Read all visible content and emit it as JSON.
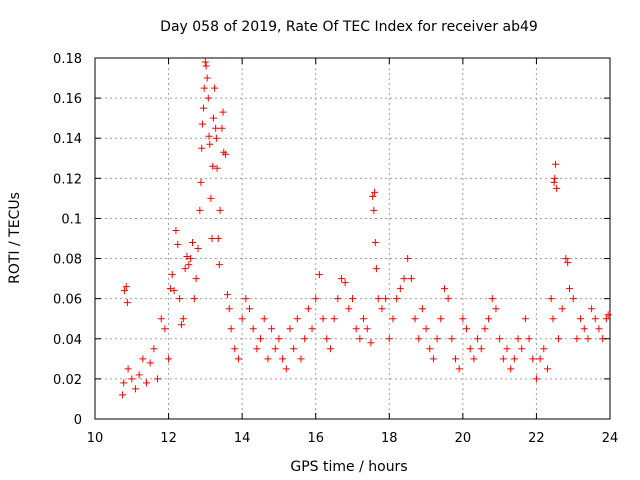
{
  "chart_data": {
    "type": "scatter",
    "title": "Day 058 of 2019, Rate Of TEC Index for receiver ab49",
    "xlabel": "GPS time / hours",
    "ylabel": "ROTI / TECUs",
    "xlim": [
      10,
      24
    ],
    "ylim": [
      0,
      0.18
    ],
    "x_ticks": [
      10,
      12,
      14,
      16,
      18,
      20,
      22,
      24
    ],
    "y_ticks": [
      0,
      0.02,
      0.04,
      0.06,
      0.08,
      0.1,
      0.12,
      0.14,
      0.16,
      0.18
    ],
    "x_tick_labels": [
      "10",
      "12",
      "14",
      "16",
      "18",
      "20",
      "22",
      "24"
    ],
    "y_tick_labels": [
      "0",
      "0.02",
      "0.04",
      "0.06",
      "0.08",
      "0.1",
      "0.12",
      "0.14",
      "0.16",
      "0.18"
    ],
    "grid": true,
    "marker": "+",
    "color": "#ff0000",
    "series": [
      {
        "name": "ROTI",
        "points": [
          [
            10.75,
            0.012
          ],
          [
            10.78,
            0.018
          ],
          [
            10.8,
            0.064
          ],
          [
            10.85,
            0.066
          ],
          [
            10.88,
            0.058
          ],
          [
            10.9,
            0.025
          ],
          [
            11.0,
            0.02
          ],
          [
            11.1,
            0.015
          ],
          [
            11.2,
            0.022
          ],
          [
            11.3,
            0.03
          ],
          [
            11.4,
            0.018
          ],
          [
            11.5,
            0.028
          ],
          [
            11.6,
            0.035
          ],
          [
            11.7,
            0.02
          ],
          [
            11.8,
            0.05
          ],
          [
            11.9,
            0.045
          ],
          [
            12.0,
            0.03
          ],
          [
            12.05,
            0.065
          ],
          [
            12.1,
            0.072
          ],
          [
            12.15,
            0.064
          ],
          [
            12.2,
            0.094
          ],
          [
            12.25,
            0.087
          ],
          [
            12.3,
            0.06
          ],
          [
            12.35,
            0.047
          ],
          [
            12.4,
            0.05
          ],
          [
            12.45,
            0.075
          ],
          [
            12.5,
            0.081
          ],
          [
            12.55,
            0.077
          ],
          [
            12.6,
            0.08
          ],
          [
            12.65,
            0.088
          ],
          [
            12.7,
            0.06
          ],
          [
            12.75,
            0.07
          ],
          [
            12.8,
            0.085
          ],
          [
            12.85,
            0.104
          ],
          [
            12.88,
            0.118
          ],
          [
            12.9,
            0.135
          ],
          [
            12.92,
            0.147
          ],
          [
            12.95,
            0.155
          ],
          [
            12.97,
            0.165
          ],
          [
            13.0,
            0.178
          ],
          [
            13.02,
            0.176
          ],
          [
            13.05,
            0.17
          ],
          [
            13.08,
            0.16
          ],
          [
            13.1,
            0.141
          ],
          [
            13.12,
            0.137
          ],
          [
            13.15,
            0.11
          ],
          [
            13.18,
            0.09
          ],
          [
            13.2,
            0.126
          ],
          [
            13.22,
            0.15
          ],
          [
            13.25,
            0.165
          ],
          [
            13.28,
            0.145
          ],
          [
            13.3,
            0.14
          ],
          [
            13.32,
            0.125
          ],
          [
            13.35,
            0.09
          ],
          [
            13.38,
            0.077
          ],
          [
            13.4,
            0.104
          ],
          [
            13.45,
            0.145
          ],
          [
            13.48,
            0.153
          ],
          [
            13.5,
            0.133
          ],
          [
            13.55,
            0.132
          ],
          [
            13.6,
            0.062
          ],
          [
            13.65,
            0.055
          ],
          [
            13.7,
            0.045
          ],
          [
            13.8,
            0.035
          ],
          [
            13.9,
            0.03
          ],
          [
            14.0,
            0.05
          ],
          [
            14.1,
            0.06
          ],
          [
            14.2,
            0.055
          ],
          [
            14.3,
            0.045
          ],
          [
            14.4,
            0.035
          ],
          [
            14.5,
            0.04
          ],
          [
            14.6,
            0.05
          ],
          [
            14.7,
            0.03
          ],
          [
            14.8,
            0.045
          ],
          [
            14.9,
            0.035
          ],
          [
            15.0,
            0.04
          ],
          [
            15.1,
            0.03
          ],
          [
            15.2,
            0.025
          ],
          [
            15.3,
            0.045
          ],
          [
            15.4,
            0.035
          ],
          [
            15.5,
            0.05
          ],
          [
            15.6,
            0.03
          ],
          [
            15.7,
            0.04
          ],
          [
            15.8,
            0.055
          ],
          [
            15.9,
            0.045
          ],
          [
            16.0,
            0.06
          ],
          [
            16.1,
            0.072
          ],
          [
            16.2,
            0.05
          ],
          [
            16.3,
            0.04
          ],
          [
            16.4,
            0.035
          ],
          [
            16.5,
            0.05
          ],
          [
            16.6,
            0.06
          ],
          [
            16.7,
            0.07
          ],
          [
            16.8,
            0.068
          ],
          [
            16.9,
            0.055
          ],
          [
            17.0,
            0.06
          ],
          [
            17.1,
            0.045
          ],
          [
            17.2,
            0.04
          ],
          [
            17.3,
            0.05
          ],
          [
            17.4,
            0.045
          ],
          [
            17.5,
            0.038
          ],
          [
            17.55,
            0.111
          ],
          [
            17.58,
            0.104
          ],
          [
            17.6,
            0.113
          ],
          [
            17.62,
            0.088
          ],
          [
            17.65,
            0.075
          ],
          [
            17.7,
            0.06
          ],
          [
            17.8,
            0.055
          ],
          [
            17.9,
            0.06
          ],
          [
            18.0,
            0.04
          ],
          [
            18.1,
            0.05
          ],
          [
            18.2,
            0.06
          ],
          [
            18.3,
            0.065
          ],
          [
            18.4,
            0.07
          ],
          [
            18.5,
            0.08
          ],
          [
            18.6,
            0.07
          ],
          [
            18.7,
            0.05
          ],
          [
            18.8,
            0.04
          ],
          [
            18.9,
            0.055
          ],
          [
            19.0,
            0.045
          ],
          [
            19.1,
            0.035
          ],
          [
            19.2,
            0.03
          ],
          [
            19.3,
            0.04
          ],
          [
            19.4,
            0.05
          ],
          [
            19.5,
            0.065
          ],
          [
            19.6,
            0.06
          ],
          [
            19.7,
            0.04
          ],
          [
            19.8,
            0.03
          ],
          [
            19.9,
            0.025
          ],
          [
            20.0,
            0.05
          ],
          [
            20.1,
            0.045
          ],
          [
            20.2,
            0.035
          ],
          [
            20.3,
            0.03
          ],
          [
            20.4,
            0.04
          ],
          [
            20.5,
            0.035
          ],
          [
            20.6,
            0.045
          ],
          [
            20.7,
            0.05
          ],
          [
            20.8,
            0.06
          ],
          [
            20.9,
            0.055
          ],
          [
            21.0,
            0.04
          ],
          [
            21.1,
            0.03
          ],
          [
            21.2,
            0.035
          ],
          [
            21.3,
            0.025
          ],
          [
            21.4,
            0.03
          ],
          [
            21.5,
            0.04
          ],
          [
            21.6,
            0.035
          ],
          [
            21.7,
            0.05
          ],
          [
            21.8,
            0.04
          ],
          [
            21.9,
            0.03
          ],
          [
            22.0,
            0.02
          ],
          [
            22.1,
            0.03
          ],
          [
            22.2,
            0.035
          ],
          [
            22.3,
            0.025
          ],
          [
            22.4,
            0.06
          ],
          [
            22.45,
            0.05
          ],
          [
            22.48,
            0.118
          ],
          [
            22.5,
            0.12
          ],
          [
            22.52,
            0.127
          ],
          [
            22.55,
            0.115
          ],
          [
            22.6,
            0.04
          ],
          [
            22.7,
            0.055
          ],
          [
            22.8,
            0.08
          ],
          [
            22.85,
            0.078
          ],
          [
            22.9,
            0.065
          ],
          [
            23.0,
            0.06
          ],
          [
            23.1,
            0.04
          ],
          [
            23.2,
            0.05
          ],
          [
            23.3,
            0.045
          ],
          [
            23.4,
            0.04
          ],
          [
            23.5,
            0.055
          ],
          [
            23.6,
            0.05
          ],
          [
            23.7,
            0.045
          ],
          [
            23.8,
            0.04
          ],
          [
            23.9,
            0.05
          ],
          [
            23.95,
            0.052
          ]
        ]
      }
    ]
  }
}
